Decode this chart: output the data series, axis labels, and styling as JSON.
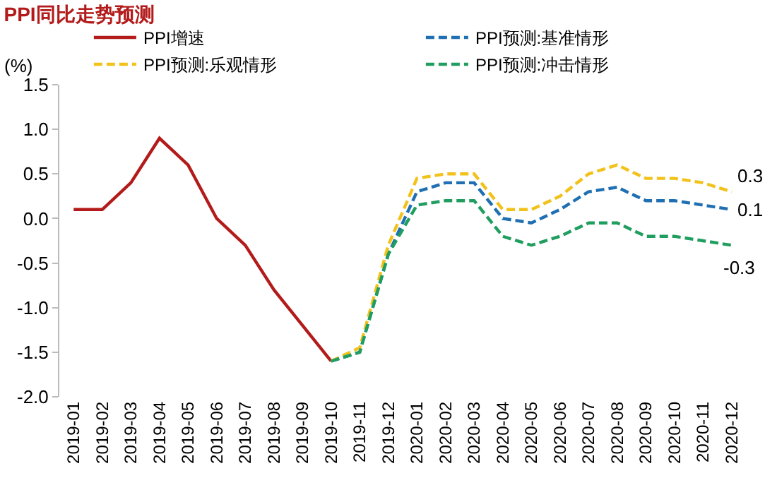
{
  "chart_data": {
    "type": "line",
    "title": "PPI同比走势预测",
    "ylabel": "(%)",
    "categories": [
      "2019-01",
      "2019-02",
      "2019-03",
      "2019-04",
      "2019-05",
      "2019-06",
      "2019-07",
      "2019-08",
      "2019-09",
      "2019-10",
      "2019-11",
      "2019-12",
      "2020-01",
      "2020-02",
      "2020-03",
      "2020-04",
      "2020-05",
      "2020-06",
      "2020-07",
      "2020-08",
      "2020-09",
      "2020-10",
      "2020-11",
      "2020-12"
    ],
    "series": [
      {
        "name": "PPI增速",
        "color": "#b31b1b",
        "line_style": "solid",
        "values": [
          0.1,
          0.1,
          0.4,
          0.9,
          0.6,
          0.0,
          -0.3,
          -0.8,
          -1.2,
          -1.6,
          null,
          null,
          null,
          null,
          null,
          null,
          null,
          null,
          null,
          null,
          null,
          null,
          null,
          null
        ]
      },
      {
        "name": "PPI预测:基准情形",
        "color": "#1f6fb2",
        "line_style": "dashed",
        "values": [
          null,
          null,
          null,
          null,
          null,
          null,
          null,
          null,
          null,
          -1.6,
          -1.5,
          -0.4,
          0.3,
          0.4,
          0.4,
          0.0,
          -0.05,
          0.1,
          0.3,
          0.35,
          0.2,
          0.2,
          0.15,
          0.1
        ]
      },
      {
        "name": "PPI预测:乐观情形",
        "color": "#f2c21b",
        "line_style": "dashed",
        "values": [
          null,
          null,
          null,
          null,
          null,
          null,
          null,
          null,
          null,
          -1.6,
          -1.45,
          -0.3,
          0.45,
          0.5,
          0.5,
          0.1,
          0.1,
          0.25,
          0.5,
          0.6,
          0.45,
          0.45,
          0.4,
          0.3
        ]
      },
      {
        "name": "PPI预测:冲击情形",
        "color": "#1f9e5f",
        "line_style": "dashed",
        "values": [
          null,
          null,
          null,
          null,
          null,
          null,
          null,
          null,
          null,
          -1.6,
          -1.5,
          -0.4,
          0.15,
          0.2,
          0.2,
          -0.2,
          -0.3,
          -0.2,
          -0.05,
          -0.05,
          -0.2,
          -0.2,
          -0.25,
          -0.3
        ]
      }
    ],
    "annotations": [
      {
        "text": "0.3",
        "x": "2020-12",
        "y": 0.3
      },
      {
        "text": "0.1",
        "x": "2020-12",
        "y": 0.1
      },
      {
        "text": "-0.3",
        "x": "2020-12",
        "y": -0.3
      }
    ],
    "ylim": [
      -2.0,
      1.5
    ],
    "yticks": [
      {
        "value": -2,
        "label": "-2.0"
      },
      -1.5,
      {
        "value": -1,
        "label": "-1.0"
      },
      -0.5,
      {
        "value": 0,
        "label": "0.0"
      },
      0.5,
      {
        "value": 1,
        "label": "1.0"
      },
      1.5
    ],
    "legend": "top",
    "marker": "none",
    "grid": false
  }
}
